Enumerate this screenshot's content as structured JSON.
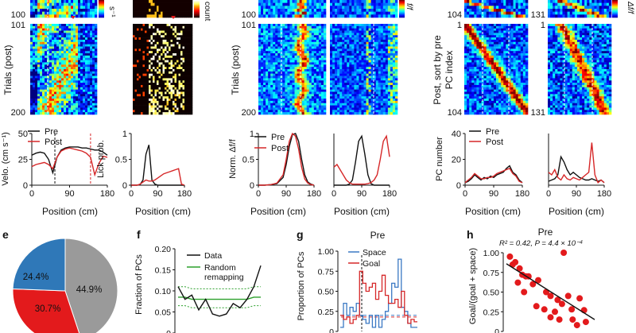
{
  "figure": {
    "heatmap_tick_labels": {
      "a_top": "100",
      "a_101": "101",
      "a_200": "200",
      "b_top": "100",
      "b_101": "101",
      "b_200": "200",
      "c_top": "104",
      "c_1": "1",
      "c_104": "104",
      "d_top": "131",
      "d_1": "1",
      "d_131": "131"
    },
    "colorbar_labels": {
      "velocity": "s⁻¹",
      "count": "count",
      "dff1": "f/f",
      "dff2": "Δf/f"
    },
    "ylabels": {
      "trials_post_a": "Trials (post)",
      "trials_post_b": "Trials (post)",
      "post_sort": "Post, sort by pre",
      "pc_index": "PC index",
      "velocity": "Velo. (cm s⁻¹)",
      "lick": "Lick prob.",
      "norm_dff": "Norm. Δf/f",
      "pc_number": "PC number",
      "fraction_pcs": "Fraction of PCs",
      "proportion_pcs": "Proportion of PCs",
      "goal_ratio": "Goal/(goal + space)"
    },
    "xlabel": "Position (cm)",
    "panel_labels": {
      "e": "e",
      "f": "f",
      "g": "g",
      "h": "h"
    },
    "legends": {
      "pre": "Pre",
      "post": "Post",
      "data": "Data",
      "random": "Random",
      "remapping": "remapping",
      "space": "Space",
      "goal": "Goal"
    },
    "titles": {
      "g": "Pre",
      "h": "Pre"
    },
    "stats_h": "R² = 0.42, P = 4.4 × 10⁻⁴",
    "colors": {
      "pre": "#111111",
      "post": "#d62728",
      "blue": "#3a78c4",
      "green": "#2ca02c",
      "grey": "#9a9a9a"
    }
  },
  "chart_data": [
    {
      "type": "line",
      "id": "velocity",
      "x": [
        0,
        10,
        20,
        30,
        40,
        50,
        60,
        70,
        80,
        90,
        100,
        110,
        120,
        130,
        140,
        150,
        160,
        170,
        180
      ],
      "series": [
        {
          "name": "Pre",
          "values": [
            29,
            31,
            32,
            31,
            25,
            12,
            27,
            34,
            36,
            37,
            37,
            37,
            36,
            36,
            35,
            34,
            34,
            32,
            29
          ]
        },
        {
          "name": "Post",
          "values": [
            18,
            20,
            21,
            22,
            20,
            16,
            27,
            33,
            35,
            36,
            35,
            34,
            33,
            31,
            27,
            10,
            21,
            28,
            27
          ]
        }
      ],
      "xticks": [
        "0",
        "90",
        "180"
      ],
      "yticks": [
        "0",
        "25",
        "50"
      ],
      "ylim": [
        0,
        50
      ],
      "markers": [
        55,
        140
      ]
    },
    {
      "type": "line",
      "id": "lick",
      "x": [
        0,
        10,
        20,
        30,
        40,
        50,
        60,
        70,
        80,
        90,
        100,
        110,
        120,
        130,
        140,
        150,
        160,
        170,
        180
      ],
      "series": [
        {
          "name": "Pre",
          "values": [
            0,
            0,
            0,
            0.01,
            0.1,
            0.6,
            0.78,
            0.1,
            0.02,
            0,
            0,
            0,
            0,
            0,
            0,
            0,
            0,
            0,
            0
          ]
        },
        {
          "name": "Post",
          "values": [
            0,
            0,
            0,
            0.02,
            0.06,
            0.1,
            0.08,
            0.08,
            0.1,
            0.14,
            0.18,
            0.22,
            0.24,
            0.26,
            0.28,
            0.3,
            0.32,
            0.02,
            0
          ]
        }
      ],
      "xticks": [
        "0",
        "90",
        "180"
      ],
      "yticks": [
        "0",
        "0.5",
        "1"
      ],
      "ylim": [
        0,
        1
      ]
    },
    {
      "type": "line",
      "id": "norm_c",
      "x": [
        0,
        20,
        40,
        60,
        80,
        90,
        100,
        110,
        120,
        130,
        140,
        150,
        160,
        170,
        180
      ],
      "series": [
        {
          "name": "Pre",
          "values": [
            0,
            0,
            0.01,
            0.03,
            0.15,
            0.4,
            0.75,
            0.98,
            1,
            0.85,
            0.5,
            0.2,
            0.06,
            0.02,
            0
          ]
        },
        {
          "name": "Post",
          "values": [
            0,
            0,
            0.01,
            0.04,
            0.2,
            0.5,
            0.85,
            1,
            0.95,
            0.7,
            0.35,
            0.12,
            0.04,
            0.01,
            0
          ]
        }
      ],
      "xticks": [
        "0",
        "90",
        "180"
      ],
      "yticks": [
        "0",
        "0.5",
        "1"
      ],
      "ylim": [
        0,
        1
      ]
    },
    {
      "type": "line",
      "id": "norm_d",
      "x": [
        0,
        10,
        20,
        30,
        40,
        50,
        60,
        70,
        80,
        90,
        100,
        110,
        120,
        130,
        140,
        150,
        160,
        170,
        180
      ],
      "series": [
        {
          "name": "Pre",
          "values": [
            0,
            0,
            0,
            0,
            0,
            0.02,
            0.1,
            0.45,
            0.85,
            0.95,
            0.6,
            0.2,
            0.03,
            0,
            0,
            0,
            0,
            0,
            0
          ]
        },
        {
          "name": "Post",
          "values": [
            0.35,
            0.4,
            0.3,
            0.2,
            0.1,
            0.05,
            0.02,
            0.02,
            0.02,
            0.02,
            0.02,
            0.03,
            0.05,
            0.1,
            0.2,
            0.5,
            0.85,
            0.95,
            0.55
          ]
        }
      ],
      "xticks": [
        "0",
        "90",
        "180"
      ],
      "yticks": [],
      "ylim": [
        0,
        1
      ]
    },
    {
      "type": "line",
      "id": "pcnum_c",
      "x": [
        0,
        10,
        20,
        30,
        40,
        50,
        60,
        70,
        80,
        90,
        100,
        110,
        120,
        130,
        140,
        150,
        160,
        170,
        180
      ],
      "series": [
        {
          "name": "Pre",
          "values": [
            2,
            3,
            5,
            8,
            6,
            4,
            6,
            5,
            7,
            6,
            8,
            9,
            10,
            13,
            15,
            10,
            8,
            4,
            2
          ]
        },
        {
          "name": "Post",
          "values": [
            2,
            4,
            6,
            9,
            7,
            5,
            5,
            6,
            6,
            7,
            9,
            10,
            11,
            12,
            13,
            9,
            7,
            3,
            2
          ]
        }
      ],
      "xticks": [
        "0",
        "90",
        "180"
      ],
      "yticks": [
        "0",
        "20",
        "40"
      ],
      "ylim": [
        0,
        40
      ]
    },
    {
      "type": "line",
      "id": "pcnum_d",
      "x": [
        0,
        10,
        20,
        30,
        40,
        50,
        60,
        70,
        80,
        90,
        100,
        110,
        120,
        130,
        140,
        150,
        160,
        170,
        180
      ],
      "series": [
        {
          "name": "Pre",
          "values": [
            3,
            4,
            5,
            8,
            22,
            18,
            12,
            8,
            10,
            8,
            6,
            5,
            4,
            4,
            5,
            4,
            3,
            4,
            2
          ]
        },
        {
          "name": "Post",
          "values": [
            10,
            8,
            12,
            6,
            4,
            8,
            5,
            4,
            6,
            5,
            4,
            6,
            8,
            10,
            33,
            8,
            2,
            4,
            2
          ]
        }
      ],
      "xticks": [
        "0",
        "90",
        "180"
      ],
      "yticks": [],
      "ylim": [
        0,
        40
      ]
    },
    {
      "type": "pie",
      "id": "e",
      "values": [
        44.9,
        30.7,
        24.4
      ],
      "labels": [
        "44.9%",
        "30.7%",
        "24.4%"
      ],
      "colors": [
        "#9a9a9a",
        "#e31a1c",
        "#2f78b8"
      ]
    },
    {
      "type": "line",
      "id": "f",
      "x": [
        1,
        2,
        3,
        4,
        5,
        6,
        7,
        8,
        9,
        10,
        11,
        12,
        13
      ],
      "series": [
        {
          "name": "Data",
          "values": [
            0.11,
            0.08,
            0.09,
            0.055,
            0.08,
            0.045,
            0.04,
            0.045,
            0.07,
            0.06,
            0.08,
            0.11,
            0.16
          ]
        },
        {
          "name": "Random remapping",
          "values": [
            0.085,
            0.085,
            0.08,
            0.08,
            0.08,
            0.08,
            0.08,
            0.08,
            0.08,
            0.08,
            0.08,
            0.085,
            0.085
          ]
        }
      ],
      "band": [
        0.06,
        0.105
      ],
      "yticks": [
        "0",
        "0.05",
        "0.10",
        "0.15",
        "0.20"
      ],
      "ylim": [
        0,
        0.2
      ]
    },
    {
      "type": "line",
      "id": "g",
      "x": [
        0,
        1,
        2,
        3,
        4,
        5,
        6,
        7,
        8,
        9,
        10,
        11,
        12,
        13,
        14,
        15,
        16,
        17,
        18,
        19,
        20,
        21,
        22,
        23
      ],
      "series": [
        {
          "name": "Space",
          "values": [
            0.05,
            0.35,
            0.2,
            0.3,
            0.25,
            0.35,
            0.2,
            0.15,
            0.1,
            0.2,
            0.05,
            0.2,
            0.05,
            0.15,
            0.25,
            0.35,
            0.6,
            0.55,
            0.9,
            0.3,
            0.25,
            0.1,
            0.05,
            0.05
          ]
        },
        {
          "name": "Goal",
          "values": [
            0.2,
            0.15,
            0.18,
            0.1,
            0.15,
            0.2,
            0.75,
            0.6,
            0.5,
            0.55,
            0.6,
            0.4,
            0.5,
            0.7,
            0.45,
            0.35,
            0.35,
            0.4,
            0.3,
            0.5,
            0.2,
            0.1,
            0.15,
            0.12
          ]
        }
      ],
      "yticks": [
        "0",
        "0.25",
        "0.50",
        "0.75",
        "1.00"
      ],
      "ylim": [
        0,
        1
      ]
    },
    {
      "type": "scatter",
      "id": "h",
      "points": [
        [
          0.4,
          0.95
        ],
        [
          0.7,
          0.85
        ],
        [
          1.0,
          0.88
        ],
        [
          1.5,
          0.8
        ],
        [
          1.8,
          0.72
        ],
        [
          2.2,
          0.7
        ],
        [
          2.5,
          0.7
        ],
        [
          1.3,
          0.62
        ],
        [
          3.0,
          0.6
        ],
        [
          3.6,
          0.65
        ],
        [
          4.5,
          0.5
        ],
        [
          5.0,
          0.45
        ],
        [
          5.8,
          0.4
        ],
        [
          6.3,
          0.35
        ],
        [
          7.0,
          0.45
        ],
        [
          8.3,
          0.42
        ],
        [
          3.4,
          0.32
        ],
        [
          4.3,
          0.28
        ],
        [
          5.5,
          0.25
        ],
        [
          7.4,
          0.28
        ],
        [
          8.8,
          0.27
        ],
        [
          5.0,
          0.18
        ],
        [
          6.0,
          0.15
        ],
        [
          7.5,
          0.15
        ],
        [
          8.0,
          0.08
        ],
        [
          2.0,
          0.5
        ],
        [
          6.5,
          1.0
        ],
        [
          9.0,
          0.12
        ]
      ],
      "fit": [
        [
          0,
          0.86
        ],
        [
          10,
          0.15
        ]
      ],
      "yticks": [
        "0",
        "0.25",
        "0.50",
        "0.75",
        "1.00"
      ],
      "ylim": [
        0,
        1
      ]
    }
  ]
}
